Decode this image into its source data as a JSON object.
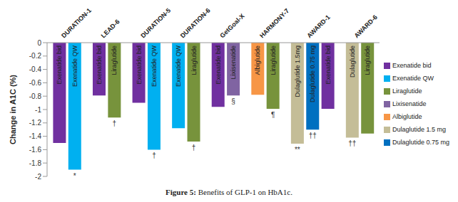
{
  "chart_data": {
    "type": "bar",
    "title": "Figure 5: Benefits of GLP-1 on HbA1c.",
    "y_label": "Change in A1C (%)",
    "ylim": [
      -2,
      0
    ],
    "yticks": [
      0,
      -0.2,
      -0.4,
      -0.6,
      -0.8,
      -1,
      -1.2,
      -1.4,
      -1.6,
      -1.8,
      -2
    ],
    "legend": "right",
    "series": [
      {
        "name": "Exenatide bid",
        "color": "#7030a0"
      },
      {
        "name": "Exenatide QW",
        "color": "#00b0f0"
      },
      {
        "name": "Liraglutide",
        "color": "#77933c"
      },
      {
        "name": "Lixisenatide",
        "color": "#8064a2"
      },
      {
        "name": "Albiglutide",
        "color": "#f79646"
      },
      {
        "name": "Dulaglutide 1.5 mg",
        "color": "#c4bd97"
      },
      {
        "name": "Dulaglutide 0.75 mg",
        "color": "#0070c0"
      }
    ],
    "categories": [
      "DURATION-1",
      "LEAD-6",
      "DURATION-5",
      "DURATION-6",
      "GetGoal-X",
      "HARMONY-7",
      "AWARD-1",
      "AWARD-6"
    ],
    "groups": [
      [
        {
          "series": "Exenatide bid",
          "label": "Exenatide bid",
          "value": -1.5
        },
        {
          "series": "Exenatide QW",
          "label": "Exenatide QW",
          "value": -1.9,
          "note": "*"
        }
      ],
      [
        {
          "series": "Exenatide bid",
          "label": "Exenatide bid",
          "value": -0.79
        },
        {
          "series": "Liraglutide",
          "label": "Liraglutide",
          "value": -1.12,
          "note": "†"
        }
      ],
      [
        {
          "series": "Exenatide bid",
          "label": "Exenatide bid",
          "value": -0.9
        },
        {
          "series": "Exenatide QW",
          "label": "Exenatide QW",
          "value": -1.6,
          "note": "†"
        }
      ],
      [
        {
          "series": "Exenatide QW",
          "label": "Exenatide QW",
          "value": -1.28
        },
        {
          "series": "Liraglutide",
          "label": "Liraglutide",
          "value": -1.48,
          "note": "†"
        }
      ],
      [
        {
          "series": "Exenatide bid",
          "label": "Exenatide bid",
          "value": -0.96
        },
        {
          "series": "Lixisenatide",
          "label": "Lixisenatide",
          "value": -0.79,
          "note": "§"
        }
      ],
      [
        {
          "series": "Albiglutide",
          "label": "Albiglutide",
          "value": -0.78
        },
        {
          "series": "Liraglutide",
          "label": "Liraglutide",
          "value": -0.99,
          "note": "¶"
        }
      ],
      [
        {
          "series": "Dulaglutide 1.5 mg",
          "label": "Dulaglutide 1.5mg",
          "value": -1.51,
          "note": "**"
        },
        {
          "series": "Dulaglutide 0.75 mg",
          "label": "Dulaglutide 0.75 mg",
          "value": -1.3,
          "note": "††"
        },
        {
          "series": "Exenatide bid",
          "label": "Exenatide bid",
          "value": -0.99
        }
      ],
      [
        {
          "series": "Dulaglutide 1.5 mg",
          "label": "Dulaglutide",
          "value": -1.42,
          "note": "††"
        },
        {
          "series": "Liraglutide",
          "label": "Liraglutide",
          "value": -1.36
        }
      ]
    ]
  }
}
